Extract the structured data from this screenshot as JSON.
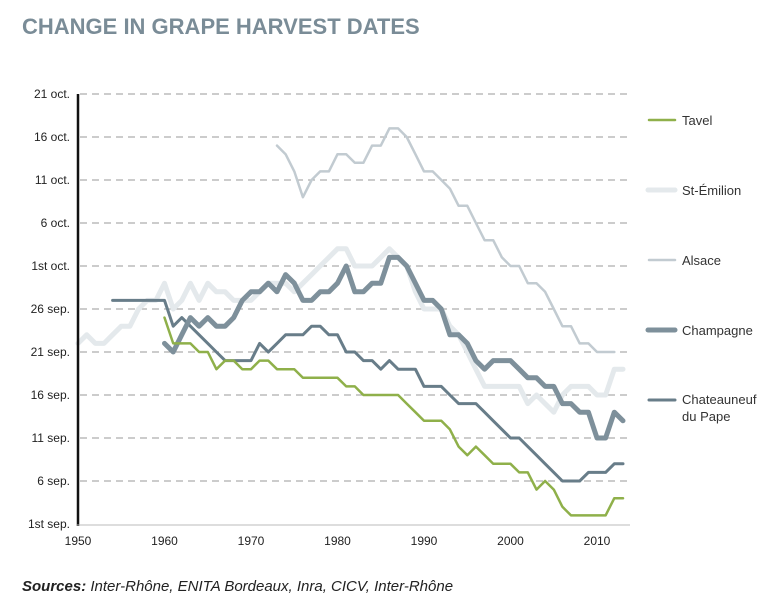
{
  "chart_data": {
    "type": "line",
    "title": "CHANGE IN GRAPE HARVEST DATES",
    "xlabel": "",
    "ylabel": "",
    "xlim": [
      1950,
      2014
    ],
    "ylim": [
      "09-01",
      "10-21"
    ],
    "x_ticks": [
      1950,
      1960,
      1970,
      1980,
      1990,
      2000,
      2010
    ],
    "y_ticks": [
      {
        "date": "09-01",
        "label": "1st sep."
      },
      {
        "date": "09-06",
        "label": "6 sep."
      },
      {
        "date": "09-11",
        "label": "11 sep."
      },
      {
        "date": "09-16",
        "label": "16 sep."
      },
      {
        "date": "09-21",
        "label": "21 sep."
      },
      {
        "date": "09-26",
        "label": "26 sep."
      },
      {
        "date": "10-01",
        "label": "1st oct."
      },
      {
        "date": "10-06",
        "label": "6 oct."
      },
      {
        "date": "10-11",
        "label": "11 oct."
      },
      {
        "date": "10-16",
        "label": "16 oct."
      },
      {
        "date": "10-21",
        "label": "21 oct."
      }
    ],
    "grid": "horizontal dashed",
    "legend_position": "right",
    "series": [
      {
        "name": "Tavel",
        "color": "#8fb04a",
        "start_year": 1960,
        "values": [
          "09-25",
          "09-22",
          "09-22",
          "09-22",
          "09-21",
          "09-21",
          "09-19",
          "09-20",
          "09-20",
          "09-19",
          "09-19",
          "09-20",
          "09-20",
          "09-19",
          "09-19",
          "09-19",
          "09-18",
          "09-18",
          "09-18",
          "09-18",
          "09-18",
          "09-17",
          "09-17",
          "09-16",
          "09-16",
          "09-16",
          "09-16",
          "09-16",
          "09-15",
          "09-14",
          "09-13",
          "09-13",
          "09-13",
          "09-12",
          "09-10",
          "09-09",
          "09-10",
          "09-09",
          "09-08",
          "09-08",
          "09-08",
          "09-07",
          "09-07",
          "09-05",
          "09-06",
          "09-05",
          "09-03",
          "09-02",
          "09-02",
          "09-02",
          "09-02",
          "09-02",
          "09-04",
          "09-04"
        ]
      },
      {
        "name": "St-Émilion",
        "color": "#e4e9ec",
        "start_year": 1950,
        "values": [
          "09-22",
          "09-23",
          "09-22",
          "09-22",
          "09-23",
          "09-24",
          "09-24",
          "09-26",
          "09-27",
          "09-27",
          "09-29",
          "09-26",
          "09-27",
          "09-29",
          "09-27",
          "09-29",
          "09-28",
          "09-28",
          "09-27",
          "09-27",
          "09-27",
          "09-28",
          "09-29",
          "09-29",
          "09-29",
          "09-28",
          "09-29",
          "09-30",
          "10-01",
          "10-02",
          "10-03",
          "10-03",
          "10-01",
          "10-01",
          "10-01",
          "10-02",
          "10-03",
          "10-02",
          "10-01",
          "09-28",
          "09-26",
          "09-26",
          "09-26",
          "09-24",
          "09-23",
          "09-21",
          "09-19",
          "09-17",
          "09-17",
          "09-17",
          "09-17",
          "09-17",
          "09-15",
          "09-16",
          "09-15",
          "09-14",
          "09-16",
          "09-17",
          "09-17",
          "09-17",
          "09-16",
          "09-16",
          "09-19",
          "09-19"
        ]
      },
      {
        "name": "Alsace",
        "color": "#c2cbd1",
        "start_year": 1973,
        "values": [
          "10-15",
          "10-14",
          "10-12",
          "10-09",
          "10-11",
          "10-12",
          "10-12",
          "10-14",
          "10-14",
          "10-13",
          "10-13",
          "10-15",
          "10-15",
          "10-17",
          "10-17",
          "10-16",
          "10-14",
          "10-12",
          "10-12",
          "10-11",
          "10-10",
          "10-08",
          "10-08",
          "10-06",
          "10-04",
          "10-04",
          "10-02",
          "10-01",
          "10-01",
          "09-29",
          "09-29",
          "09-28",
          "09-26",
          "09-24",
          "09-24",
          "09-22",
          "09-22",
          "09-21",
          "09-21",
          "09-21"
        ]
      },
      {
        "name": "Champagne",
        "color": "#7e909b",
        "start_year": 1960,
        "values": [
          "09-22",
          "09-21",
          "09-23",
          "09-25",
          "09-24",
          "09-25",
          "09-24",
          "09-24",
          "09-25",
          "09-27",
          "09-28",
          "09-28",
          "09-29",
          "09-28",
          "09-30",
          "09-29",
          "09-27",
          "09-27",
          "09-28",
          "09-28",
          "09-29",
          "10-01",
          "09-28",
          "09-28",
          "09-29",
          "09-29",
          "10-02",
          "10-02",
          "10-01",
          "09-29",
          "09-27",
          "09-27",
          "09-26",
          "09-23",
          "09-23",
          "09-22",
          "09-20",
          "09-19",
          "09-20",
          "09-20",
          "09-20",
          "09-19",
          "09-18",
          "09-18",
          "09-17",
          "09-17",
          "09-15",
          "09-15",
          "09-14",
          "09-14",
          "09-11",
          "09-11",
          "09-14",
          "09-13"
        ]
      },
      {
        "name": "Chateauneuf du Pape",
        "color": "#687d89",
        "start_year": 1954,
        "values": [
          "09-27",
          "09-27",
          "09-27",
          "09-27",
          "09-27",
          "09-27",
          "09-27",
          "09-24",
          "09-25",
          "09-24",
          "09-23",
          "09-22",
          "09-21",
          "09-20",
          "09-20",
          "09-20",
          "09-20",
          "09-22",
          "09-21",
          "09-22",
          "09-23",
          "09-23",
          "09-23",
          "09-24",
          "09-24",
          "09-23",
          "09-23",
          "09-21",
          "09-21",
          "09-20",
          "09-20",
          "09-19",
          "09-20",
          "09-19",
          "09-19",
          "09-19",
          "09-17",
          "09-17",
          "09-17",
          "09-16",
          "09-15",
          "09-15",
          "09-15",
          "09-14",
          "09-13",
          "09-12",
          "09-11",
          "09-11",
          "09-10",
          "09-09",
          "09-08",
          "09-07",
          "09-06",
          "09-06",
          "09-06",
          "09-07",
          "09-07",
          "09-07",
          "09-08",
          "09-08"
        ]
      }
    ]
  },
  "legend": {
    "tavel": "Tavel",
    "st_emilion": "St-Émilion",
    "alsace": "Alsace",
    "champagne": "Champagne",
    "chateauneuf_line1": "Chateauneuf",
    "chateauneuf_line2": "du Pape"
  },
  "sources": {
    "label": "Sources:",
    "text": " Inter-Rhône, ENITA Bordeaux, Inra, CICV, Inter-Rhône"
  }
}
